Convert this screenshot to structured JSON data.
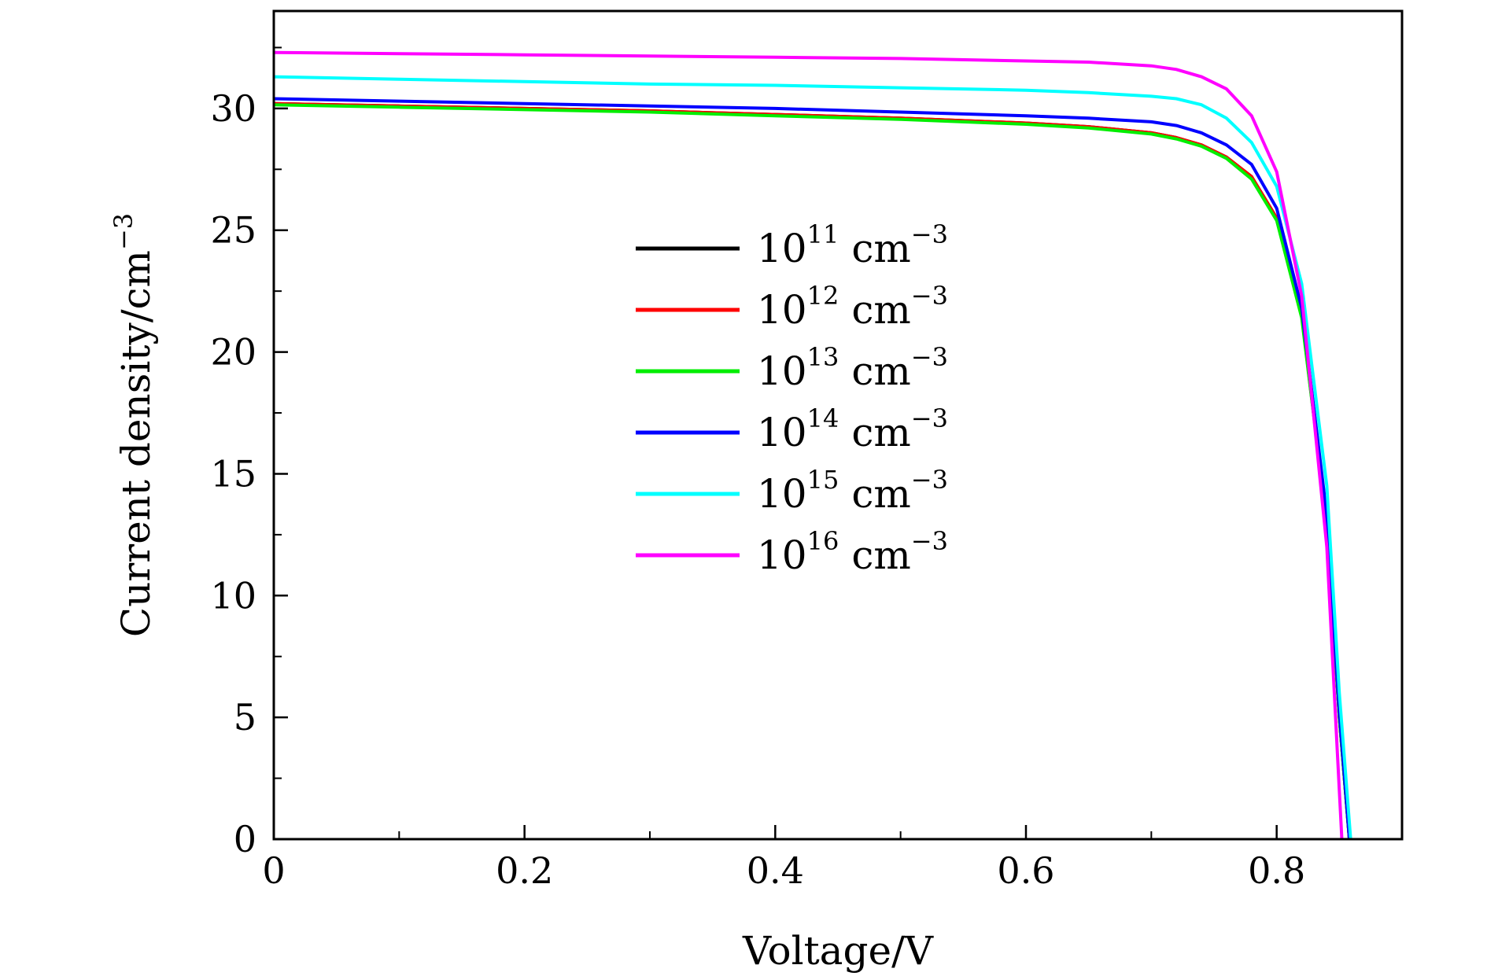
{
  "chart_data": {
    "type": "line",
    "xlabel": "Voltage/V",
    "ylabel": "Current density/cm",
    "ylabel_sup": "−3",
    "xlim": [
      0,
      0.9
    ],
    "ylim": [
      0,
      34
    ],
    "grid": false,
    "legend_position": "center",
    "x_ticks": [
      0,
      0.2,
      0.4,
      0.6,
      0.8
    ],
    "x_tick_labels": [
      "0",
      "0.2",
      "0.4",
      "0.6",
      "0.8"
    ],
    "x_minor_ticks": [
      0.1,
      0.3,
      0.5,
      0.7
    ],
    "y_ticks": [
      0,
      5,
      10,
      15,
      20,
      25,
      30
    ],
    "y_tick_labels": [
      "0",
      "5",
      "10",
      "15",
      "20",
      "25",
      "30"
    ],
    "y_minor_ticks": [
      2.5,
      7.5,
      12.5,
      17.5,
      22.5,
      27.5,
      32.5
    ],
    "series": [
      {
        "name": "10^11 cm^-3",
        "legend_base": "10",
        "legend_exp": "11",
        "legend_unit": "cm",
        "legend_unit_exp": "−3",
        "color": "#000000",
        "x": [
          0,
          0.1,
          0.2,
          0.3,
          0.4,
          0.5,
          0.6,
          0.65,
          0.7,
          0.72,
          0.74,
          0.76,
          0.78,
          0.8,
          0.82,
          0.84,
          0.85,
          0.858
        ],
        "y": [
          30.2,
          30.1,
          30.0,
          29.9,
          29.75,
          29.6,
          29.4,
          29.25,
          29.0,
          28.8,
          28.5,
          28.0,
          27.2,
          25.5,
          21.5,
          13.0,
          5.0,
          0
        ]
      },
      {
        "name": "10^12 cm^-3",
        "legend_base": "10",
        "legend_exp": "12",
        "legend_unit": "cm",
        "legend_unit_exp": "−3",
        "color": "#ff0000",
        "x": [
          0,
          0.1,
          0.2,
          0.3,
          0.4,
          0.5,
          0.6,
          0.65,
          0.7,
          0.72,
          0.74,
          0.76,
          0.78,
          0.8,
          0.82,
          0.84,
          0.85,
          0.858
        ],
        "y": [
          30.2,
          30.1,
          30.0,
          29.9,
          29.75,
          29.6,
          29.4,
          29.25,
          29.0,
          28.8,
          28.5,
          28.0,
          27.2,
          25.5,
          21.5,
          13.0,
          5.0,
          0
        ]
      },
      {
        "name": "10^13 cm^-3",
        "legend_base": "10",
        "legend_exp": "13",
        "legend_unit": "cm",
        "legend_unit_exp": "−3",
        "color": "#00ee00",
        "x": [
          0,
          0.1,
          0.2,
          0.3,
          0.4,
          0.5,
          0.6,
          0.65,
          0.7,
          0.72,
          0.74,
          0.76,
          0.78,
          0.8,
          0.82,
          0.84,
          0.85,
          0.858
        ],
        "y": [
          30.15,
          30.05,
          29.95,
          29.85,
          29.7,
          29.55,
          29.35,
          29.2,
          28.95,
          28.75,
          28.45,
          27.95,
          27.1,
          25.4,
          21.4,
          13.0,
          5.0,
          0
        ]
      },
      {
        "name": "10^14 cm^-3",
        "legend_base": "10",
        "legend_exp": "14",
        "legend_unit": "cm",
        "legend_unit_exp": "−3",
        "color": "#0000ff",
        "x": [
          0,
          0.1,
          0.2,
          0.3,
          0.4,
          0.5,
          0.6,
          0.65,
          0.7,
          0.72,
          0.74,
          0.76,
          0.78,
          0.8,
          0.82,
          0.84,
          0.85,
          0.858
        ],
        "y": [
          30.4,
          30.3,
          30.2,
          30.1,
          30.0,
          29.85,
          29.7,
          29.6,
          29.45,
          29.3,
          29.0,
          28.5,
          27.7,
          25.9,
          21.8,
          13.3,
          5.2,
          0
        ]
      },
      {
        "name": "10^15 cm^-3",
        "legend_base": "10",
        "legend_exp": "15",
        "legend_unit": "cm",
        "legend_unit_exp": "−3",
        "color": "#00ffff",
        "x": [
          0,
          0.1,
          0.2,
          0.3,
          0.4,
          0.5,
          0.6,
          0.65,
          0.7,
          0.72,
          0.74,
          0.76,
          0.78,
          0.8,
          0.82,
          0.84,
          0.85,
          0.859
        ],
        "y": [
          31.3,
          31.2,
          31.1,
          31.0,
          30.95,
          30.85,
          30.75,
          30.65,
          30.5,
          30.4,
          30.15,
          29.6,
          28.6,
          26.8,
          22.8,
          14.5,
          6.0,
          0
        ]
      },
      {
        "name": "10^16 cm^-3",
        "legend_base": "10",
        "legend_exp": "16",
        "legend_unit": "cm",
        "legend_unit_exp": "−3",
        "color": "#ff00ff",
        "x": [
          0,
          0.1,
          0.2,
          0.3,
          0.4,
          0.5,
          0.6,
          0.65,
          0.7,
          0.72,
          0.74,
          0.76,
          0.78,
          0.8,
          0.82,
          0.84,
          0.848,
          0.852
        ],
        "y": [
          32.3,
          32.25,
          32.2,
          32.15,
          32.1,
          32.05,
          31.95,
          31.9,
          31.75,
          31.6,
          31.3,
          30.8,
          29.7,
          27.4,
          22.3,
          12.0,
          4.0,
          0
        ]
      }
    ]
  }
}
